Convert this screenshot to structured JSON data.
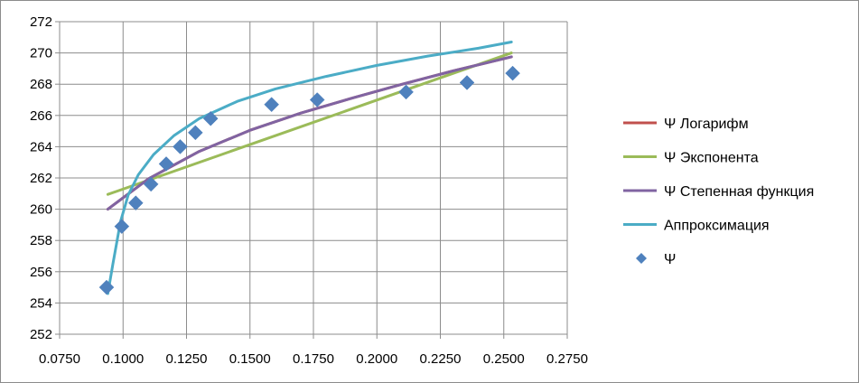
{
  "chart_data": {
    "type": "scatter",
    "xlim": [
      0.075,
      0.275
    ],
    "ylim": [
      252,
      272
    ],
    "x_ticks": [
      "0.0750",
      "0.1000",
      "0.1250",
      "0.1500",
      "0.1750",
      "0.2000",
      "0.2250",
      "0.2500",
      "0.2750"
    ],
    "y_ticks": [
      "252",
      "254",
      "256",
      "258",
      "260",
      "262",
      "264",
      "266",
      "268",
      "270",
      "272"
    ],
    "grid": "vertical and horizontal major",
    "legend_position": "right",
    "series": [
      {
        "name": "Ψ Логарифм",
        "kind": "line",
        "color": "#c0504d",
        "x": [
          0.094,
          0.11,
          0.13,
          0.15,
          0.17,
          0.19,
          0.21,
          0.23,
          0.253
        ],
        "y": [
          260.0,
          261.95,
          263.7,
          265.05,
          266.15,
          267.1,
          268.0,
          268.85,
          269.75
        ]
      },
      {
        "name": "Ψ Экспонента",
        "kind": "line",
        "color": "#9bbb59",
        "x": [
          0.094,
          0.253
        ],
        "y": [
          260.95,
          270.0
        ]
      },
      {
        "name": "Ψ Степенная функция",
        "kind": "line",
        "color": "#8064a2",
        "x": [
          0.094,
          0.11,
          0.13,
          0.15,
          0.17,
          0.19,
          0.21,
          0.23,
          0.253
        ],
        "y": [
          260.0,
          261.95,
          263.7,
          265.05,
          266.15,
          267.1,
          268.0,
          268.85,
          269.75
        ]
      },
      {
        "name": "Аппроксимация",
        "kind": "line",
        "color": "#4bacc6",
        "x": [
          0.094,
          0.096,
          0.099,
          0.102,
          0.106,
          0.112,
          0.12,
          0.13,
          0.145,
          0.16,
          0.18,
          0.2,
          0.22,
          0.24,
          0.253
        ],
        "y": [
          254.6,
          256.5,
          259.2,
          260.9,
          262.2,
          263.5,
          264.7,
          265.8,
          266.9,
          267.7,
          268.5,
          269.2,
          269.8,
          270.3,
          270.7
        ]
      },
      {
        "name": "Ψ",
        "kind": "marker",
        "color": "#4f81bd",
        "x": [
          0.0935,
          0.0995,
          0.105,
          0.111,
          0.117,
          0.1225,
          0.1285,
          0.1345,
          0.1585,
          0.1765,
          0.2115,
          0.2355,
          0.2535
        ],
        "y": [
          255.0,
          258.9,
          260.4,
          261.6,
          262.9,
          264.0,
          264.9,
          265.8,
          266.7,
          267.0,
          267.5,
          268.1,
          268.7
        ]
      }
    ]
  }
}
